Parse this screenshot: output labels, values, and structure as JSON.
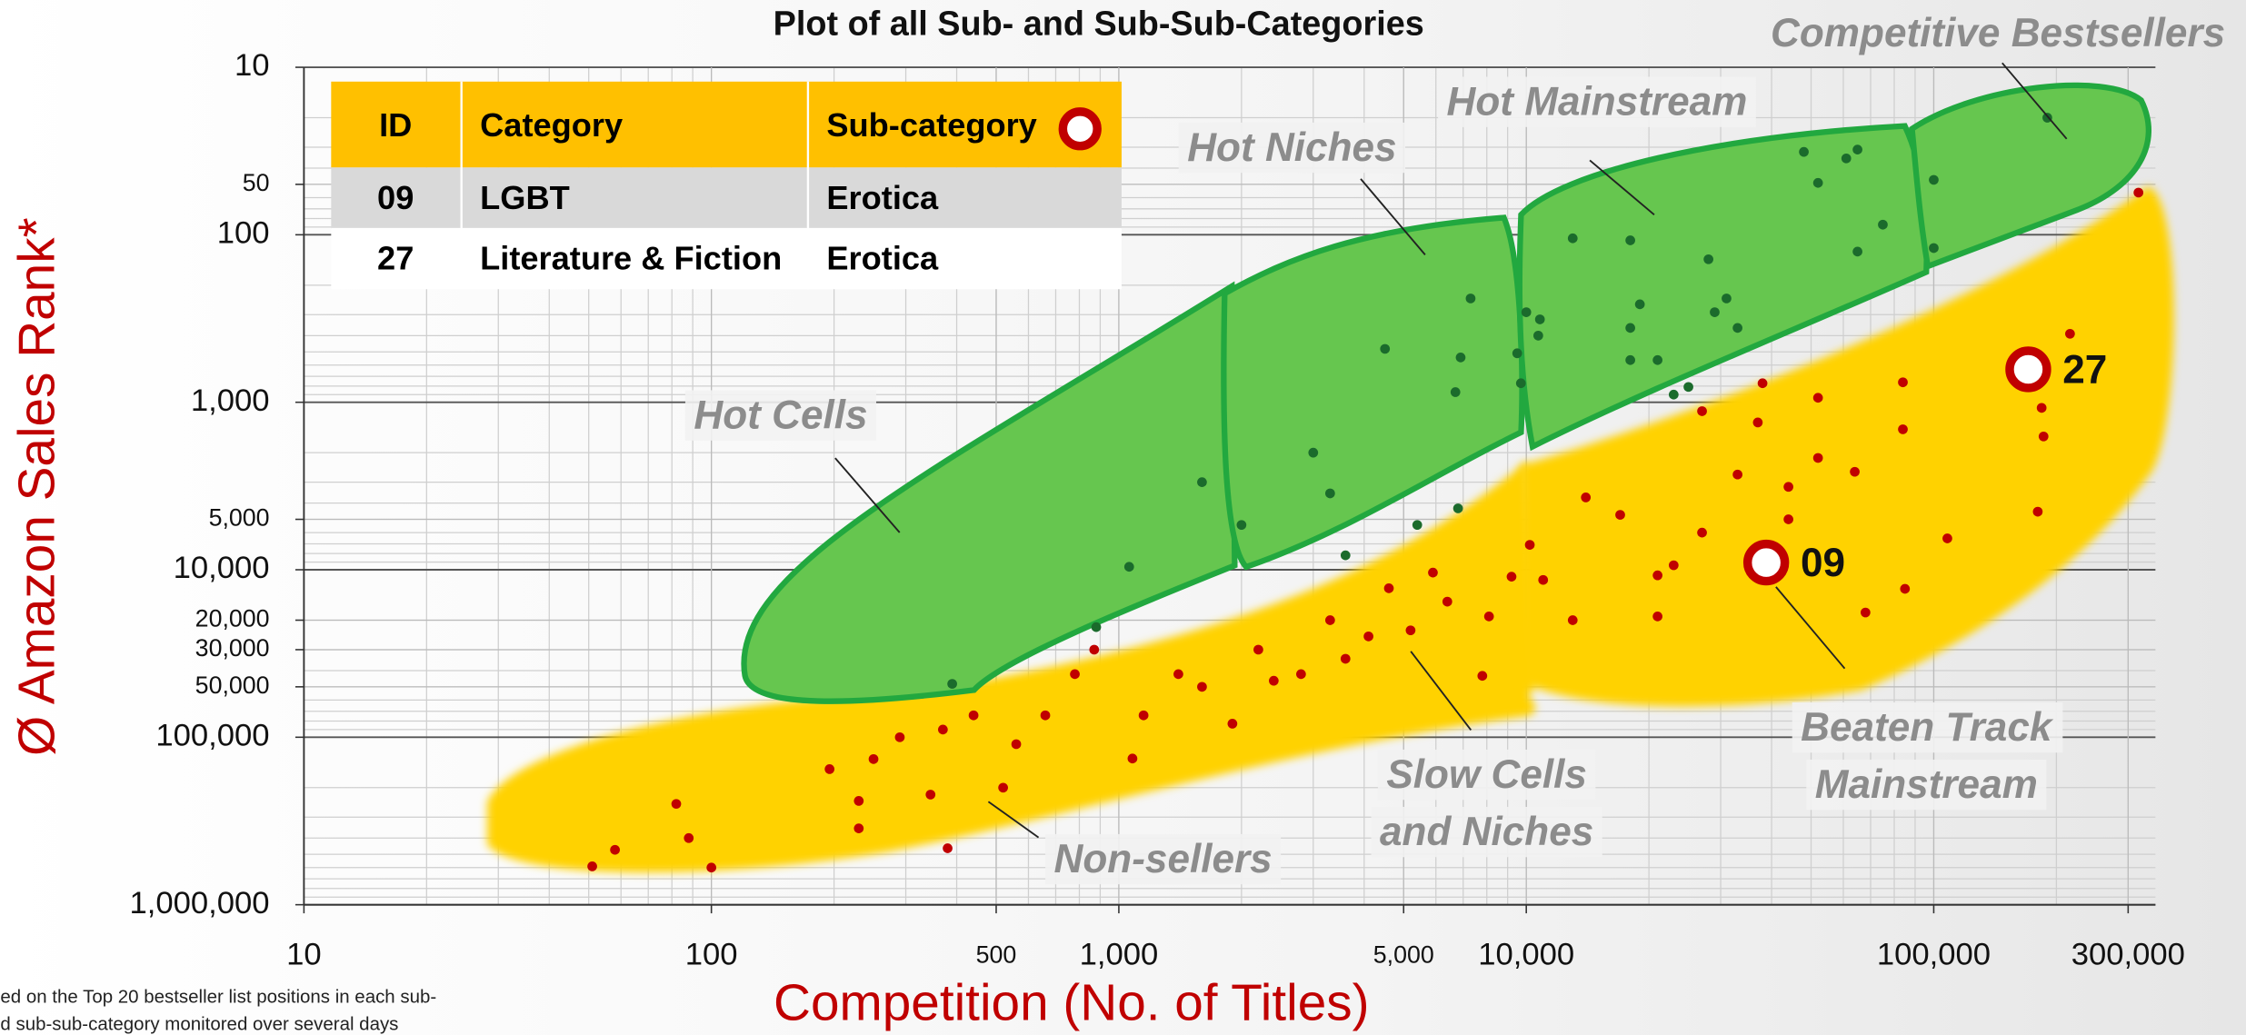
{
  "chart_data": {
    "type": "scatter",
    "title": "Plot of all Sub- and Sub-Sub-Categories",
    "x_label": "Competition (No. of Titles)",
    "y_label": "Ø Amazon Sales Rank*",
    "x_log": true,
    "y_log": true,
    "y_inverted": true,
    "grid": true,
    "xlim": [
      10,
      350000
    ],
    "ylim": [
      10,
      1000000
    ],
    "xticks": [
      10,
      100,
      500,
      {
        "value": 1000,
        "label": "1,000"
      },
      {
        "value": 5000,
        "label": "5,000"
      },
      {
        "value": 10000,
        "label": "10,000"
      },
      {
        "value": 100000,
        "label": "100,000"
      },
      {
        "value": 300000,
        "label": "300,000"
      }
    ],
    "yticks": [
      10,
      50,
      100,
      {
        "value": 1000,
        "label": "1,000"
      },
      {
        "value": 5000,
        "label": "5,000"
      },
      {
        "value": 10000,
        "label": "10,000"
      },
      {
        "value": 20000,
        "label": "20,000"
      },
      {
        "value": 30000,
        "label": "30,000"
      },
      {
        "value": 50000,
        "label": "50,000"
      },
      {
        "value": 100000,
        "label": "100,000"
      },
      {
        "value": 1000000,
        "label": "1,000,000"
      }
    ],
    "series": [
      {
        "color": "#1b6b2c",
        "x": [
          190000,
          48000,
          65000,
          61000,
          52000,
          100000,
          75000,
          13000,
          18000,
          28000,
          65000,
          100000,
          7300,
          10000,
          10800,
          19000,
          31000,
          29000,
          33000,
          10700,
          18000,
          4500,
          6900,
          9500,
          18000,
          21000,
          6700,
          9700,
          23000,
          25000,
          3000,
          1600,
          3300,
          2000,
          6800,
          5400,
          3600,
          1060,
          880,
          390
        ],
        "y": [
          20,
          32,
          31,
          35,
          49,
          47,
          87,
          105,
          108,
          140,
          126,
          120,
          240,
          290,
          320,
          260,
          240,
          290,
          360,
          400,
          360,
          480,
          540,
          510,
          560,
          560,
          870,
          770,
          900,
          810,
          2000,
          3000,
          3500,
          5400,
          4300,
          5400,
          8200,
          9600,
          22000,
          48000
        ]
      },
      {
        "color": "#c00000",
        "x": [
          318000,
          216000,
          184000,
          186000,
          180000,
          108000,
          85000,
          68000,
          84000,
          84000,
          64000,
          52000,
          52000,
          38000,
          27000,
          37000,
          44000,
          44000,
          33000,
          27000,
          23000,
          21000,
          21000,
          17000,
          14000,
          13000,
          11000,
          10200,
          9200,
          8100,
          6400,
          5900,
          5200,
          4600,
          4100,
          3600,
          3300,
          2800,
          2400,
          2200,
          1900,
          1600,
          1400,
          1150,
          1080,
          870,
          780,
          660,
          560,
          520,
          440,
          370,
          345,
          290,
          250,
          230,
          195,
          230,
          380,
          82,
          88,
          100,
          58,
          51,
          7800
        ],
        "y": [
          56,
          390,
          1080,
          1600,
          4500,
          6500,
          13000,
          18000,
          760,
          1450,
          2600,
          2150,
          940,
          770,
          1130,
          1320,
          3200,
          5000,
          2700,
          6000,
          9400,
          10800,
          19000,
          4700,
          3700,
          20000,
          11500,
          7100,
          11000,
          19000,
          15500,
          10400,
          23000,
          12900,
          25000,
          34000,
          20000,
          42000,
          46000,
          30000,
          83000,
          50000,
          42000,
          74000,
          134000,
          30000,
          42000,
          74000,
          110000,
          200000,
          74000,
          90000,
          220000,
          100000,
          135000,
          240000,
          155000,
          350000,
          460000,
          250000,
          400000,
          600000,
          470000,
          590000,
          43000
        ]
      }
    ],
    "highlights": [
      {
        "label": "09",
        "x": 38800,
        "y": 9060
      },
      {
        "label": "27",
        "x": 170600,
        "y": 636
      }
    ],
    "annotations": [
      {
        "lines": [
          "Competitive Bestsellers"
        ]
      },
      {
        "lines": [
          "Hot Mainstream"
        ]
      },
      {
        "lines": [
          "Hot Niches"
        ]
      },
      {
        "lines": [
          "Hot Cells"
        ]
      },
      {
        "lines": [
          "Beaten Track",
          "Mainstream"
        ]
      },
      {
        "lines": [
          "Slow Cells",
          "and Niches"
        ]
      },
      {
        "lines": [
          "Non-sellers"
        ]
      }
    ],
    "footnote": [
      "ed on the  Top 20 bestseller list positions in each sub-",
      "d sub-sub-category monitored over several days"
    ]
  },
  "table": {
    "header": [
      "ID",
      "Category",
      "Sub-category"
    ],
    "rows": [
      [
        "09",
        "LGBT",
        "Erotica"
      ],
      [
        "27",
        "Literature & Fiction",
        "Erotica"
      ]
    ]
  }
}
